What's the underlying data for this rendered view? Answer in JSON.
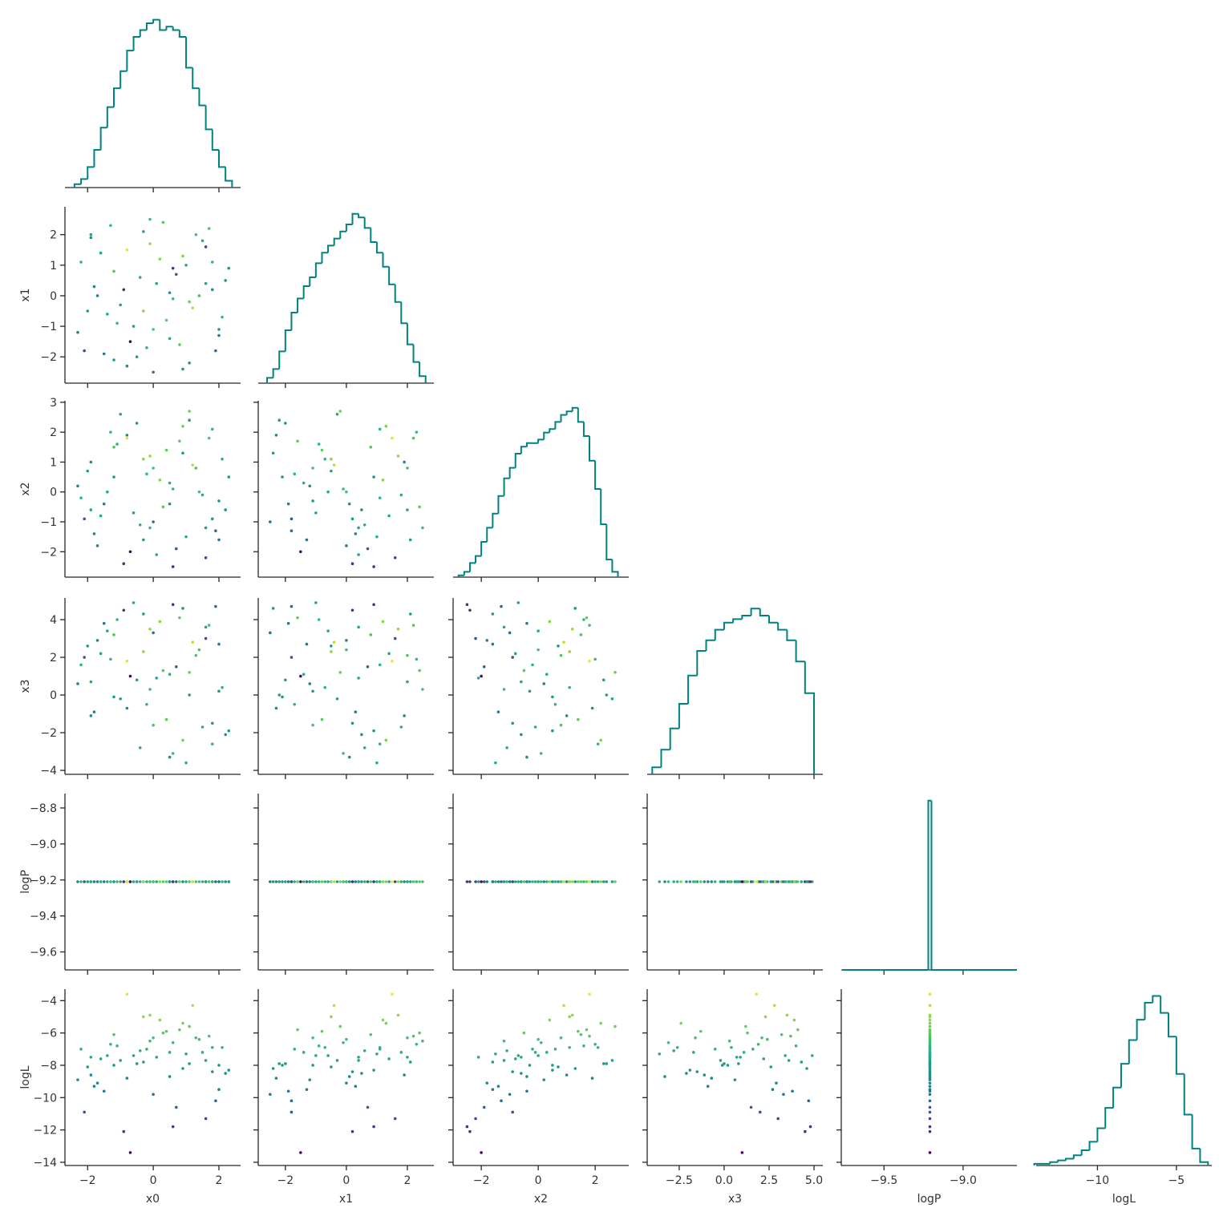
{
  "chart_data": {
    "type": "corner",
    "hist_color": "#00827f",
    "colormap": "viridis",
    "clim": [
      -13.6,
      -3.3
    ],
    "variables": [
      {
        "name": "x0",
        "xlim": [
          -2.69,
          2.66
        ],
        "xticks": [
          {
            "value": -2,
            "label": "−2"
          },
          0,
          2
        ],
        "histogram": {
          "bins": [
            -2.4,
            -2.2,
            -2.0,
            -1.8,
            -1.6,
            -1.4,
            -1.2,
            -1.0,
            -0.8,
            -0.6,
            -0.4,
            -0.2,
            0.0,
            0.2,
            0.4,
            0.6,
            0.8,
            1.0,
            1.2,
            1.4,
            1.6,
            1.8,
            2.0,
            2.2,
            2.4
          ],
          "counts": [
            2,
            5,
            12,
            22,
            35,
            47,
            58,
            68,
            80,
            88,
            92,
            96,
            98,
            92,
            94,
            92,
            88,
            70,
            58,
            48,
            34,
            22,
            12,
            4
          ],
          "ylim": [
            0,
            103
          ]
        },
        "values": [
          -1.2,
          0.5,
          1.8,
          -0.3,
          2.1,
          -2.0,
          0.9,
          -1.5,
          0.1,
          1.3,
          -0.8,
          1.9,
          -2.2,
          0.6,
          -0.1,
          1.1,
          -1.7,
          2.3,
          -0.6,
          0.3,
          -1.0,
          1.6,
          -1.9,
          0.8,
          -0.4,
          1.4,
          -2.3,
          0.0,
          1.0,
          -1.3,
          2.0,
          -0.9,
          0.4,
          -1.6,
          1.7,
          -0.2,
          0.7,
          -1.1,
          2.2,
          -0.5,
          1.2,
          -1.8,
          0.2,
          -0.7,
          1.5,
          -2.1,
          0.9,
          -0.1,
          1.8,
          -1.4,
          0.5,
          -0.8,
          2.0,
          -1.2,
          0.6,
          1.1,
          -1.9,
          0.0,
          1.6,
          -0.3
        ]
      },
      {
        "name": "x1",
        "xlim": [
          -2.89,
          2.87
        ],
        "xticks": [
          {
            "value": -2,
            "label": "−2"
          },
          0,
          2
        ],
        "ylim": [
          -2.86,
          2.91
        ],
        "yticks": [
          {
            "value": -2,
            "label": "−2"
          },
          {
            "value": -1,
            "label": "−1"
          },
          0,
          1,
          2
        ],
        "histogram": {
          "bins": [
            -2.6,
            -2.4,
            -2.2,
            -2.0,
            -1.8,
            -1.6,
            -1.4,
            -1.2,
            -1.0,
            -0.8,
            -0.6,
            -0.4,
            -0.2,
            0.0,
            0.2,
            0.4,
            0.6,
            0.8,
            1.0,
            1.2,
            1.4,
            1.6,
            1.8,
            2.0,
            2.2,
            2.4,
            2.6
          ],
          "counts": [
            3,
            8,
            18,
            30,
            40,
            48,
            55,
            60,
            68,
            74,
            78,
            82,
            86,
            90,
            96,
            94,
            88,
            80,
            74,
            66,
            56,
            46,
            34,
            22,
            12,
            4
          ],
          "ylim": [
            0,
            100
          ]
        },
        "values": [
          0.8,
          -1.4,
          0.2,
          2.1,
          -0.7,
          -0.5,
          1.3,
          -1.9,
          0.4,
          2.0,
          -2.3,
          -1.8,
          1.1,
          -0.1,
          1.7,
          -2.2,
          0.0,
          0.9,
          -1.0,
          2.4,
          -0.3,
          1.6,
          1.9,
          -1.6,
          0.6,
          0.0,
          -1.2,
          -2.5,
          1.0,
          2.3,
          -1.1,
          0.2,
          -0.8,
          1.4,
          2.2,
          -1.7,
          0.7,
          -0.9,
          0.5,
          -2.0,
          -0.4,
          0.3,
          1.2,
          -1.5,
          1.8,
          -1.8,
          -2.4,
          2.5,
          1.1,
          -0.6,
          0.1,
          1.5,
          -1.3,
          -2.1,
          0.9,
          -0.2,
          2.0,
          -1.1,
          0.4,
          -0.5
        ]
      },
      {
        "name": "x2",
        "xlim": [
          -2.99,
          3.18
        ],
        "xticks": [
          {
            "value": -2,
            "label": "−2"
          },
          0,
          2
        ],
        "ylim": [
          -2.85,
          3.05
        ],
        "yticks": [
          {
            "value": -2,
            "label": "−2"
          },
          {
            "value": -1,
            "label": "−1"
          },
          0,
          1,
          2,
          3
        ],
        "histogram": {
          "bins": [
            -2.8,
            -2.6,
            -2.4,
            -2.2,
            -2.0,
            -1.8,
            -1.6,
            -1.4,
            -1.2,
            -1.0,
            -0.8,
            -0.6,
            -0.4,
            -0.2,
            0.0,
            0.2,
            0.4,
            0.6,
            0.8,
            1.0,
            1.2,
            1.4,
            1.6,
            1.8,
            2.0,
            2.2,
            2.4,
            2.6,
            2.8
          ],
          "counts": [
            1,
            3,
            8,
            12,
            20,
            28,
            36,
            46,
            56,
            62,
            70,
            74,
            76,
            76,
            78,
            82,
            84,
            88,
            92,
            94,
            96,
            88,
            80,
            66,
            50,
            30,
            10,
            3
          ],
          "ylim": [
            0,
            100
          ]
        },
        "values": [
          1.5,
          0.3,
          -0.9,
          -1.6,
          1.1,
          0.7,
          2.2,
          -0.4,
          -2.1,
          0.8,
          1.9,
          -1.3,
          -0.2,
          0.1,
          1.2,
          2.4,
          -1.8,
          0.5,
          -0.7,
          -0.5,
          2.6,
          -2.2,
          1.0,
          1.7,
          -1.1,
          0.0,
          0.2,
          -1.0,
          -1.5,
          2.0,
          -0.3,
          -2.4,
          1.4,
          -0.8,
          1.8,
          0.6,
          -1.9,
          1.6,
          -0.6,
          2.3,
          0.9,
          -1.4,
          0.4,
          -2.0,
          -0.1,
          -0.9,
          1.3,
          -1.2,
          2.1,
          0.0,
          -0.4,
          1.8,
          -1.6,
          0.5,
          -2.5,
          2.7,
          -0.6,
          0.8,
          -1.2,
          1.1
        ]
      },
      {
        "name": "x3",
        "xlim": [
          -4.28,
          5.49
        ],
        "xticks": [
          {
            "value": -2.5,
            "label": "−2.5"
          },
          {
            "value": 0,
            "label": "0.0"
          },
          2.5,
          {
            "value": 5,
            "label": "5.0"
          }
        ],
        "ylim": [
          -4.21,
          5.15
        ],
        "yticks": [
          {
            "value": -4,
            "label": "−4"
          },
          {
            "value": -2,
            "label": "−2"
          },
          0,
          2,
          4
        ],
        "histogram": {
          "bins": [
            -4.0,
            -3.5,
            -3.0,
            -2.5,
            -2.0,
            -1.5,
            -1.0,
            -0.5,
            0.0,
            0.5,
            1.0,
            1.5,
            2.0,
            2.5,
            3.0,
            3.5,
            4.0,
            4.5,
            5.0
          ],
          "counts": [
            4,
            14,
            26,
            40,
            56,
            70,
            76,
            82,
            86,
            88,
            90,
            94,
            90,
            86,
            82,
            76,
            64,
            46
          ],
          "ylim": [
            0,
            100
          ]
        },
        "values": [
          3.2,
          1.1,
          -1.5,
          4.3,
          0.4,
          2.6,
          -2.4,
          3.8,
          0.9,
          2.1,
          -0.7,
          4.7,
          1.6,
          -3.1,
          3.5,
          0.0,
          2.9,
          -1.9,
          4.9,
          1.3,
          -0.2,
          3.0,
          -1.1,
          4.1,
          -2.8,
          2.4,
          0.6,
          3.3,
          -3.6,
          1.9,
          0.2,
          4.5,
          -1.3,
          2.2,
          3.7,
          -0.5,
          1.5,
          4.0,
          -2.1,
          0.8,
          2.8,
          -0.9,
          3.9,
          1.0,
          -1.7,
          2.0,
          4.6,
          0.3,
          -2.6,
          3.4,
          -3.3,
          1.8,
          2.7,
          -0.1,
          4.8,
          1.2,
          0.7,
          -1.6,
          3.6,
          2.3
        ]
      },
      {
        "name": "logP",
        "xlim": [
          -9.77,
          -8.66
        ],
        "xticks": [
          {
            "value": -9.5,
            "label": "−9.5"
          },
          {
            "value": -9.0,
            "label": "−9.0"
          }
        ],
        "ylim": [
          -9.7,
          -8.72
        ],
        "yticks": [
          {
            "value": -9.6,
            "label": "−9.6"
          },
          {
            "value": -9.4,
            "label": "−9.4"
          },
          {
            "value": -9.2,
            "label": "−9.2"
          },
          {
            "value": -9.0,
            "label": "−9.0"
          },
          {
            "value": -8.8,
            "label": "−8.8"
          }
        ],
        "histogram": {
          "bins": [
            -9.76,
            -9.22,
            -9.2,
            -8.66
          ],
          "counts": [
            0,
            96,
            0
          ],
          "ylim": [
            0,
            100
          ]
        },
        "values": [
          -9.21,
          -9.21,
          -9.21,
          -9.21,
          -9.21,
          -9.21,
          -9.21,
          -9.21,
          -9.21,
          -9.21,
          -9.21,
          -9.21,
          -9.21,
          -9.21,
          -9.21,
          -9.21,
          -9.21,
          -9.21,
          -9.21,
          -9.21,
          -9.21,
          -9.21,
          -9.21,
          -9.21,
          -9.21,
          -9.21,
          -9.21,
          -9.21,
          -9.21,
          -9.21,
          -9.21,
          -9.21,
          -9.21,
          -9.21,
          -9.21,
          -9.21,
          -9.21,
          -9.21,
          -9.21,
          -9.21,
          -9.21,
          -9.21,
          -9.21,
          -9.21,
          -9.21,
          -9.21,
          -9.21,
          -9.21,
          -9.21,
          -9.21,
          -9.21,
          -9.21,
          -9.21,
          -9.21,
          -9.21,
          -9.21,
          -9.21,
          -9.21,
          -9.21,
          -9.21
        ]
      },
      {
        "name": "logL",
        "xlim": [
          -13.88,
          -2.76
        ],
        "xticks": [
          {
            "value": -10,
            "label": "−10"
          },
          {
            "value": -5,
            "label": "−5"
          }
        ],
        "ylim": [
          -14.2,
          -3.29
        ],
        "yticks": [
          {
            "value": -14,
            "label": "−14"
          },
          {
            "value": -12,
            "label": "−12"
          },
          {
            "value": -10,
            "label": "−10"
          },
          {
            "value": -8,
            "label": "−8"
          },
          {
            "value": -6,
            "label": "−6"
          },
          {
            "value": -4,
            "label": "−4"
          }
        ],
        "histogram": {
          "bins": [
            -14.0,
            -13.5,
            -13.0,
            -12.5,
            -12.0,
            -11.5,
            -11.0,
            -10.5,
            -10.0,
            -9.5,
            -9.0,
            -8.5,
            -8.0,
            -7.5,
            -7.0,
            -6.5,
            -6.0,
            -5.5,
            -5.0,
            -4.5,
            -4.0,
            -3.5,
            -3.0
          ],
          "counts": [
            1,
            1,
            2,
            3,
            4,
            6,
            9,
            14,
            22,
            34,
            46,
            60,
            74,
            86,
            96,
            100,
            90,
            76,
            54,
            30,
            10,
            2
          ],
          "ylim": [
            0,
            104
          ]
        },
        "values": [
          -6.1,
          -7.2,
          -8.4,
          -7.8,
          -6.9,
          -8.1,
          -5.4,
          -9.6,
          -7.5,
          -6.3,
          -8.8,
          -10.2,
          -7.0,
          -6.6,
          -4.9,
          -7.9,
          -9.1,
          -8.3,
          -7.4,
          -6.0,
          -7.7,
          -11.3,
          -8.6,
          -5.8,
          -7.1,
          -6.4,
          -8.9,
          -9.8,
          -7.3,
          -6.7,
          -8.0,
          -12.1,
          -5.9,
          -7.6,
          -6.2,
          -7.0,
          -10.6,
          -6.8,
          -8.5,
          -7.9,
          -4.3,
          -9.3,
          -5.2,
          -13.4,
          -7.2,
          -10.9,
          -8.2,
          -6.5,
          -6.9,
          -7.4,
          -8.7,
          -3.6,
          -9.5,
          -8.0,
          -11.8,
          -5.6,
          -7.5,
          -6.3,
          -7.7,
          -5.0
        ]
      }
    ]
  }
}
